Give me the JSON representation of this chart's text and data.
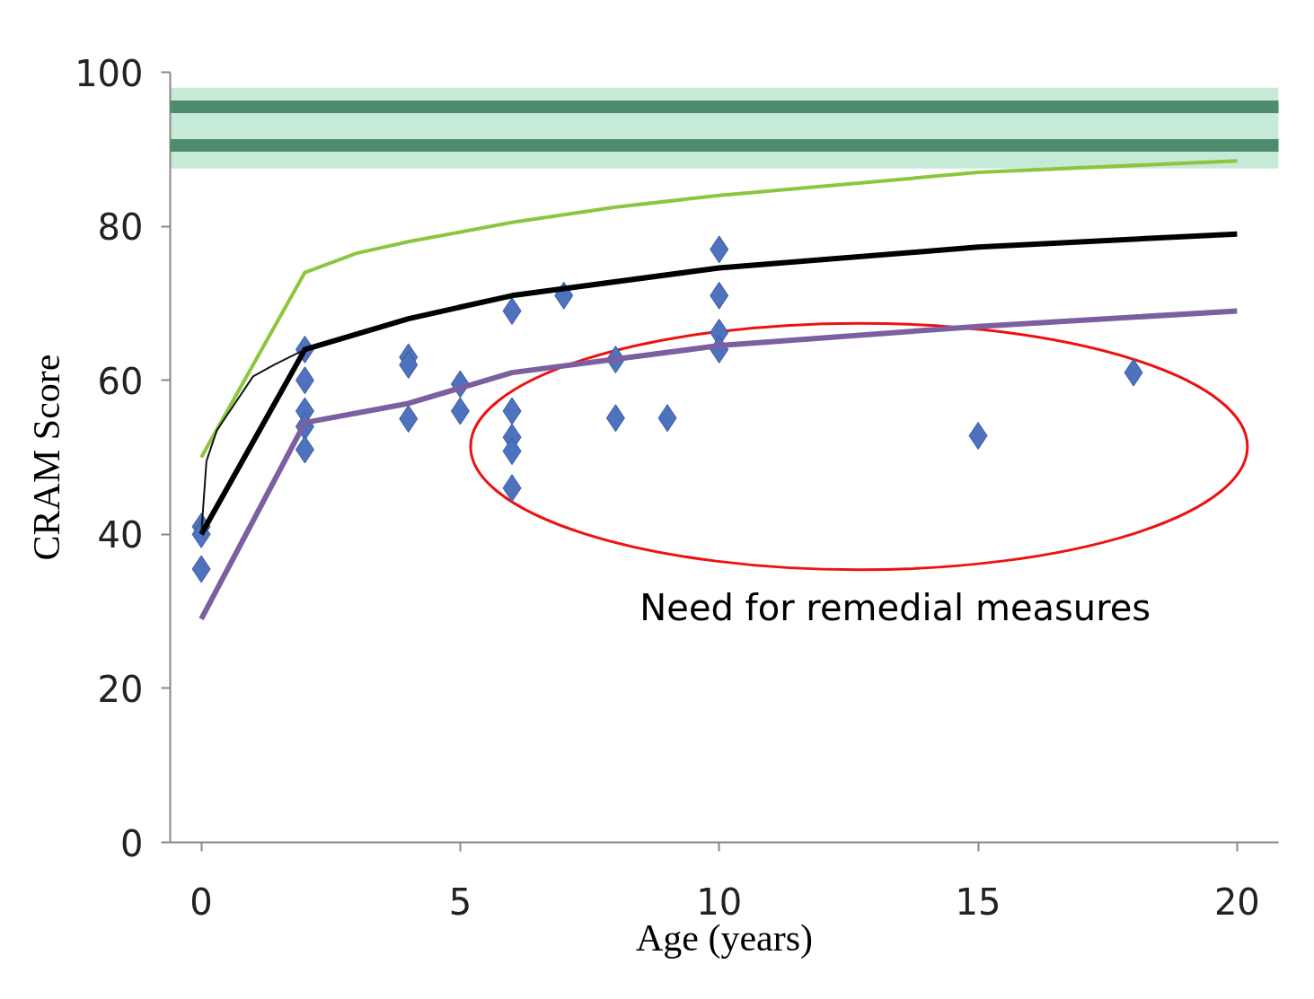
{
  "chart_data": {
    "type": "line",
    "xlabel": "Age (years)",
    "ylabel": "CRAM Score",
    "xlim": [
      -0.6,
      20.8
    ],
    "ylim": [
      0,
      100
    ],
    "xticks": [
      0,
      5,
      10,
      15,
      20
    ],
    "yticks": [
      0,
      20,
      40,
      60,
      80,
      100
    ],
    "grid": false,
    "series": [
      {
        "type": "scatter",
        "marker": "diamond",
        "color": "#4f72be",
        "x": [
          0,
          0,
          0,
          2,
          2,
          2,
          2,
          2,
          4,
          4,
          4,
          5,
          5,
          6,
          6,
          6,
          6,
          6,
          7,
          8,
          8,
          9,
          10,
          10,
          10,
          10,
          15,
          18
        ],
        "values": [
          41,
          40,
          35.5,
          64,
          60,
          56,
          54,
          51,
          63,
          62,
          55,
          59.5,
          56,
          69,
          56,
          52.6,
          50.8,
          46,
          71,
          62.7,
          55.1,
          55.1,
          77,
          71,
          66.2,
          64,
          52.8,
          61
        ]
      },
      {
        "color": "#8cc63f",
        "x": [
          0,
          2,
          3,
          4,
          6,
          8,
          10,
          15,
          20
        ],
        "values": [
          50,
          74,
          76.5,
          78,
          80.5,
          82.5,
          84,
          87,
          88.5
        ]
      },
      {
        "color": "#7b5fa0",
        "x": [
          0,
          2,
          4,
          6,
          10,
          15,
          20
        ],
        "values": [
          29,
          54.5,
          57,
          61,
          64.5,
          67,
          69
        ]
      },
      {
        "color": "#000000",
        "x": [
          0,
          2,
          4,
          6,
          10,
          15,
          20
        ],
        "values": [
          40,
          64,
          68,
          71,
          74.6,
          77.3,
          79
        ]
      },
      {
        "color": "#111111",
        "x": [
          0,
          0.1,
          0.3,
          1,
          1.4,
          2
        ],
        "values": [
          40,
          49.5,
          53.5,
          60.5,
          62,
          64
        ]
      }
    ],
    "bands": [
      {
        "axis": "y",
        "from": 87.5,
        "to": 98,
        "color": "#bfe8d4"
      }
    ],
    "ref_lines": [
      {
        "axis": "y",
        "value": 95.5,
        "color": "#4e8a6c"
      },
      {
        "axis": "y",
        "value": 90.5,
        "color": "#4e8a6c"
      }
    ],
    "annotations": [
      "Need for remedial measures"
    ]
  }
}
